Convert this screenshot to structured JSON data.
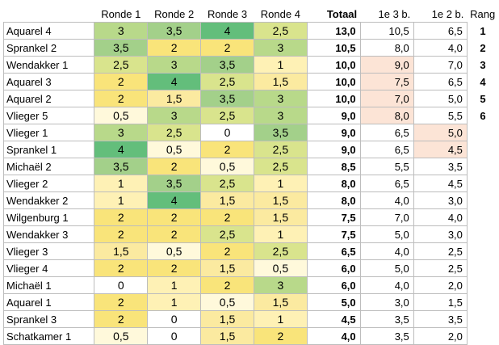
{
  "headers": [
    "Ronde 1",
    "Ronde 2",
    "Ronde 3",
    "Ronde 4",
    "Totaal",
    "1e 3 b.",
    "1e 2 b.",
    "Rang"
  ],
  "colors": {
    "s0": "#ffffff",
    "s05": "#fff9db",
    "s1": "#fef1b5",
    "s15": "#fbeaa0",
    "s2": "#f9e47a",
    "s25": "#d9e48d",
    "s3": "#b8d98a",
    "s35": "#a3d08a",
    "s4": "#63be7b",
    "peach": "#fce4d6"
  },
  "rows": [
    {
      "name": "Aquarel 4",
      "r1": "3",
      "r2": "3,5",
      "r3": "4",
      "r4": "2,5",
      "total": "13,0",
      "b3": "10,5",
      "b2": "6,5",
      "rank": "1"
    },
    {
      "name": "Sprankel 2",
      "r1": "3,5",
      "r2": "2",
      "r3": "2",
      "r4": "3",
      "total": "10,5",
      "b3": "8,0",
      "b2": "4,0",
      "rank": "2"
    },
    {
      "name": "Wendakker 1",
      "r1": "2,5",
      "r2": "3",
      "r3": "3,5",
      "r4": "1",
      "total": "10,0",
      "b3": "9,0",
      "b2": "7,0",
      "rank": "3"
    },
    {
      "name": "Aquarel 3",
      "r1": "2",
      "r2": "4",
      "r3": "2,5",
      "r4": "1,5",
      "total": "10,0",
      "b3": "7,5",
      "b2": "6,5",
      "rank": "4"
    },
    {
      "name": "Aquarel 2",
      "r1": "2",
      "r2": "1,5",
      "r3": "3,5",
      "r4": "3",
      "total": "10,0",
      "b3": "7,0",
      "b2": "5,0",
      "rank": "5"
    },
    {
      "name": "Vlieger 5",
      "r1": "0,5",
      "r2": "3",
      "r3": "2,5",
      "r4": "3",
      "total": "9,0",
      "b3": "8,0",
      "b2": "5,5",
      "rank": "6"
    },
    {
      "name": "Vlieger 1",
      "r1": "3",
      "r2": "2,5",
      "r3": "0",
      "r4": "3,5",
      "total": "9,0",
      "b3": "6,5",
      "b2": "5,0",
      "rank": ""
    },
    {
      "name": "Sprankel 1",
      "r1": "4",
      "r2": "0,5",
      "r3": "2",
      "r4": "2,5",
      "total": "9,0",
      "b3": "6,5",
      "b2": "4,5",
      "rank": ""
    },
    {
      "name": "Michaël 2",
      "r1": "3,5",
      "r2": "2",
      "r3": "0,5",
      "r4": "2,5",
      "total": "8,5",
      "b3": "5,5",
      "b2": "3,5",
      "rank": ""
    },
    {
      "name": "Vlieger 2",
      "r1": "1",
      "r2": "3,5",
      "r3": "2,5",
      "r4": "1",
      "total": "8,0",
      "b3": "6,5",
      "b2": "4,5",
      "rank": ""
    },
    {
      "name": "Wendakker 2",
      "r1": "1",
      "r2": "4",
      "r3": "1,5",
      "r4": "1,5",
      "total": "8,0",
      "b3": "4,0",
      "b2": "3,0",
      "rank": ""
    },
    {
      "name": "Wilgenburg 1",
      "r1": "2",
      "r2": "2",
      "r3": "2",
      "r4": "1,5",
      "total": "7,5",
      "b3": "7,0",
      "b2": "4,0",
      "rank": ""
    },
    {
      "name": "Wendakker 3",
      "r1": "2",
      "r2": "2",
      "r3": "2,5",
      "r4": "1",
      "total": "7,5",
      "b3": "5,0",
      "b2": "3,0",
      "rank": ""
    },
    {
      "name": "Vlieger 3",
      "r1": "1,5",
      "r2": "0,5",
      "r3": "2",
      "r4": "2,5",
      "total": "6,5",
      "b3": "4,0",
      "b2": "2,5",
      "rank": ""
    },
    {
      "name": "Vlieger 4",
      "r1": "2",
      "r2": "2",
      "r3": "1,5",
      "r4": "0,5",
      "total": "6,0",
      "b3": "5,0",
      "b2": "2,5",
      "rank": ""
    },
    {
      "name": "Michaël 1",
      "r1": "0",
      "r2": "1",
      "r3": "2",
      "r4": "3",
      "total": "6,0",
      "b3": "4,0",
      "b2": "2,0",
      "rank": ""
    },
    {
      "name": "Aquarel 1",
      "r1": "2",
      "r2": "1",
      "r3": "0,5",
      "r4": "1,5",
      "total": "5,0",
      "b3": "3,0",
      "b2": "1,5",
      "rank": ""
    },
    {
      "name": "Sprankel 3",
      "r1": "2",
      "r2": "0",
      "r3": "1,5",
      "r4": "1",
      "total": "4,5",
      "b3": "3,5",
      "b2": "3,5",
      "rank": ""
    },
    {
      "name": "Schatkamer 1",
      "r1": "0,5",
      "r2": "0",
      "r3": "1,5",
      "r4": "2",
      "total": "4,0",
      "b3": "3,5",
      "b2": "2,0",
      "rank": ""
    }
  ],
  "peach_cells": {
    "b3": [
      2,
      3,
      4,
      5
    ],
    "b2": [
      6,
      7
    ]
  }
}
